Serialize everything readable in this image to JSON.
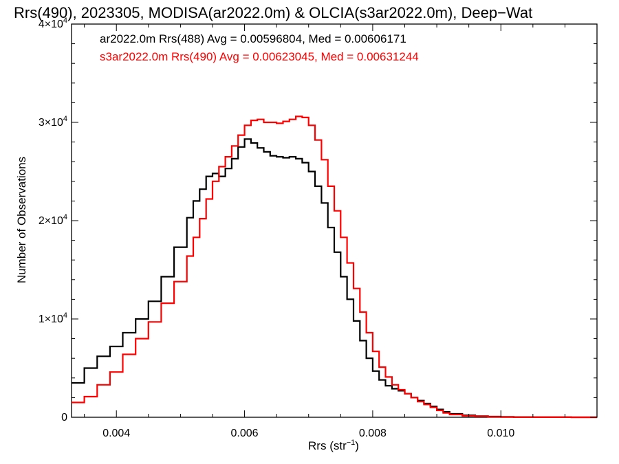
{
  "chart_data": {
    "type": "line",
    "title": "Rrs(490), 2023305, MODISA(ar2022.0m) & OLCIA(s3ar2022.0m), Deep−Wat",
    "xlabel": "Rrs (str",
    "xlabel_sup": "−1",
    "xlabel_tail": ")",
    "ylabel": "Number of Observations",
    "xlim": [
      0.0033,
      0.0115
    ],
    "ylim": [
      0,
      40000
    ],
    "grid": false,
    "x_ticks": [
      {
        "value": 0.004,
        "label": "0.004"
      },
      {
        "value": 0.006,
        "label": "0.006"
      },
      {
        "value": 0.008,
        "label": "0.008"
      },
      {
        "value": 0.01,
        "label": "0.010"
      }
    ],
    "y_ticks": [
      {
        "value": 0,
        "label": "0"
      },
      {
        "value": 10000,
        "label": "1×10",
        "sup": "4"
      },
      {
        "value": 20000,
        "label": "2×10",
        "sup": "4"
      },
      {
        "value": 30000,
        "label": "3×10",
        "sup": "4"
      },
      {
        "value": 40000,
        "label": "4×10",
        "sup": "4"
      }
    ],
    "legend_placement": "top-left",
    "series": [
      {
        "name": "ar2022.0m Rrs(488) Avg = 0.00596804, Med = 0.00606171",
        "color": "#000000",
        "x": [
          0.0033,
          0.0035,
          0.0037,
          0.0039,
          0.0041,
          0.0043,
          0.0045,
          0.0047,
          0.0049,
          0.0051,
          0.0052,
          0.0053,
          0.0054,
          0.0055,
          0.0056,
          0.0057,
          0.0058,
          0.0059,
          0.006,
          0.0061,
          0.0062,
          0.0063,
          0.0064,
          0.0065,
          0.0066,
          0.0067,
          0.0068,
          0.0069,
          0.007,
          0.0071,
          0.0072,
          0.0073,
          0.0074,
          0.0075,
          0.0076,
          0.0077,
          0.0078,
          0.0079,
          0.008,
          0.0081,
          0.0082,
          0.0083,
          0.0084,
          0.0085,
          0.0086,
          0.0087,
          0.0088,
          0.0089,
          0.009,
          0.0091,
          0.0092,
          0.0094,
          0.0096,
          0.0098,
          0.01,
          0.0102,
          0.0105,
          0.0108,
          0.0111,
          0.0115
        ],
        "y": [
          3500,
          5000,
          6200,
          7200,
          8600,
          10000,
          11800,
          14300,
          17300,
          20300,
          22000,
          23200,
          24500,
          24800,
          24500,
          25300,
          26300,
          27500,
          28300,
          27900,
          27400,
          27000,
          26600,
          26500,
          26400,
          26500,
          26300,
          25900,
          25000,
          23500,
          21800,
          19300,
          16800,
          14300,
          12000,
          9800,
          7800,
          6000,
          4700,
          3800,
          3200,
          2900,
          2700,
          2400,
          2000,
          1700,
          1400,
          1100,
          800,
          550,
          350,
          200,
          120,
          70,
          40,
          20,
          10,
          5,
          3,
          1
        ]
      },
      {
        "name": "s3ar2022.0m Rrs(490) Avg = 0.00623045, Med = 0.00631244",
        "color": "#ff0000",
        "x": [
          0.0033,
          0.0035,
          0.0037,
          0.0039,
          0.0041,
          0.0043,
          0.0045,
          0.0047,
          0.0049,
          0.0051,
          0.0052,
          0.0053,
          0.0054,
          0.0055,
          0.0056,
          0.0057,
          0.0058,
          0.0059,
          0.006,
          0.0061,
          0.0062,
          0.0063,
          0.0064,
          0.0065,
          0.0066,
          0.0067,
          0.0068,
          0.0069,
          0.007,
          0.0071,
          0.0072,
          0.0073,
          0.0074,
          0.0075,
          0.0076,
          0.0077,
          0.0078,
          0.0079,
          0.008,
          0.0081,
          0.0082,
          0.0083,
          0.0084,
          0.0085,
          0.0086,
          0.0087,
          0.0088,
          0.0089,
          0.009,
          0.0091,
          0.0092,
          0.0094,
          0.0096,
          0.0098,
          0.01,
          0.0102,
          0.0105,
          0.0108,
          0.0111,
          0.0115
        ],
        "y": [
          1500,
          2100,
          3300,
          4600,
          6400,
          8000,
          9700,
          11600,
          13800,
          16400,
          18300,
          20200,
          22200,
          24000,
          25500,
          26500,
          27600,
          28700,
          29700,
          30200,
          30300,
          30000,
          30000,
          29900,
          30100,
          30300,
          30600,
          30500,
          29700,
          28200,
          26200,
          23500,
          21000,
          18300,
          15700,
          13100,
          10700,
          8600,
          6700,
          5100,
          4100,
          3300,
          2800,
          2400,
          2000,
          1600,
          1300,
          1000,
          700,
          450,
          280,
          150,
          90,
          50,
          30,
          15,
          8,
          4,
          2,
          1
        ]
      }
    ]
  }
}
